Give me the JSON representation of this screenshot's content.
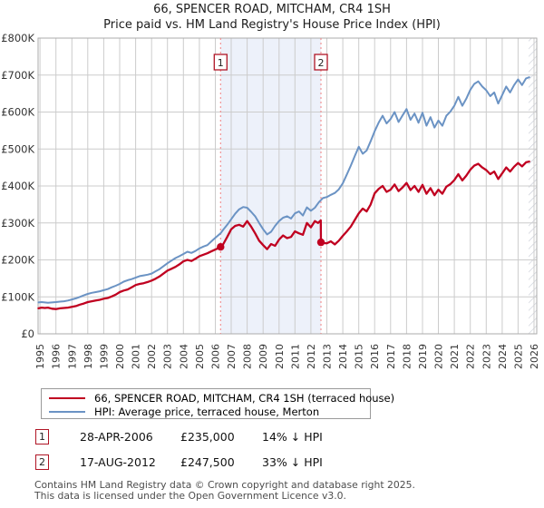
{
  "title": "66, SPENCER ROAD, MITCHAM, CR4 1SH",
  "subtitle": "Price paid vs. HM Land Registry's House Price Index (HPI)",
  "legend": {
    "items": [
      {
        "label": "66, SPENCER ROAD, MITCHAM, CR4 1SH (terraced house)",
        "color": "#c00020"
      },
      {
        "label": "HPI: Average price, terraced house, Merton",
        "color": "#6b93c4"
      }
    ]
  },
  "purchases": [
    {
      "num": "1",
      "date": "28-APR-2006",
      "price": "£235,000",
      "hpi_diff": "14% ↓ HPI"
    },
    {
      "num": "2",
      "date": "17-AUG-2012",
      "price": "£247,500",
      "hpi_diff": "33% ↓ HPI"
    }
  ],
  "footer": {
    "line1": "Contains HM Land Registry data © Crown copyright and database right 2025.",
    "line2": "This data is licensed under the Open Government Licence v3.0."
  },
  "colors": {
    "price_line": "#c00020",
    "hpi_line": "#6b93c4",
    "grid": "#cccccc",
    "plot_border": "#ababab",
    "shade": "#edf1fa",
    "dashed": "#f08080",
    "marker_box_border": "#b01525",
    "marker_text": "#222222",
    "hatch": "#c5c9d4",
    "tick_text": "#333333",
    "dot": "#c00020"
  },
  "chart_data": {
    "type": "line",
    "title": "66, SPENCER ROAD, MITCHAM, CR4 1SH",
    "x_range": [
      1994.88,
      2026.17
    ],
    "y_range": [
      0,
      800
    ],
    "x_ticks": [
      1995,
      1996,
      1997,
      1998,
      1999,
      2000,
      2001,
      2002,
      2003,
      2004,
      2005,
      2006,
      2007,
      2008,
      2009,
      2010,
      2011,
      2012,
      2013,
      2014,
      2015,
      2016,
      2017,
      2018,
      2019,
      2020,
      2021,
      2022,
      2023,
      2024,
      2025,
      2026
    ],
    "y_ticks": [
      [
        0,
        "£0"
      ],
      [
        100,
        "£100K"
      ],
      [
        200,
        "£200K"
      ],
      [
        300,
        "£300K"
      ],
      [
        400,
        "£400K"
      ],
      [
        500,
        "£500K"
      ],
      [
        600,
        "£600K"
      ],
      [
        700,
        "£700K"
      ],
      [
        800,
        "£800K"
      ]
    ],
    "grid": true,
    "legend_position": "bottom",
    "shaded_region": {
      "from": 2006.33,
      "to": 2012.63
    },
    "future_hatch_from": 2025.66,
    "markers": [
      {
        "label": "1",
        "x": 2006.33,
        "y": 235
      },
      {
        "label": "2",
        "x": 2012.63,
        "y": 247.5
      }
    ],
    "series": [
      {
        "name": "HPI: Average price, terraced house, Merton",
        "color": "#6b93c4",
        "width": 2,
        "points": [
          [
            1994.9,
            85
          ],
          [
            1995.1,
            86
          ],
          [
            1995.3,
            85
          ],
          [
            1995.5,
            84
          ],
          [
            1995.75,
            85
          ],
          [
            1996,
            86
          ],
          [
            1996.25,
            87
          ],
          [
            1996.5,
            88
          ],
          [
            1996.75,
            90
          ],
          [
            1997,
            93
          ],
          [
            1997.25,
            96
          ],
          [
            1997.5,
            100
          ],
          [
            1997.75,
            104
          ],
          [
            1998,
            108
          ],
          [
            1998.25,
            111
          ],
          [
            1998.5,
            113
          ],
          [
            1998.75,
            115
          ],
          [
            1999,
            118
          ],
          [
            1999.25,
            121
          ],
          [
            1999.5,
            126
          ],
          [
            1999.75,
            130
          ],
          [
            2000,
            135
          ],
          [
            2000.25,
            141
          ],
          [
            2000.5,
            145
          ],
          [
            2000.75,
            148
          ],
          [
            2001,
            152
          ],
          [
            2001.25,
            156
          ],
          [
            2001.5,
            158
          ],
          [
            2001.75,
            160
          ],
          [
            2002,
            163
          ],
          [
            2002.25,
            169
          ],
          [
            2002.5,
            175
          ],
          [
            2002.75,
            183
          ],
          [
            2003,
            191
          ],
          [
            2003.25,
            198
          ],
          [
            2003.5,
            205
          ],
          [
            2003.75,
            210
          ],
          [
            2004,
            216
          ],
          [
            2004.25,
            222
          ],
          [
            2004.5,
            219
          ],
          [
            2004.75,
            224
          ],
          [
            2005,
            231
          ],
          [
            2005.25,
            236
          ],
          [
            2005.5,
            240
          ],
          [
            2005.75,
            250
          ],
          [
            2006,
            260
          ],
          [
            2006.33,
            272
          ],
          [
            2006.5,
            282
          ],
          [
            2006.75,
            295
          ],
          [
            2007,
            310
          ],
          [
            2007.25,
            325
          ],
          [
            2007.5,
            337
          ],
          [
            2007.75,
            343
          ],
          [
            2008,
            341
          ],
          [
            2008.25,
            330
          ],
          [
            2008.5,
            318
          ],
          [
            2008.75,
            300
          ],
          [
            2009,
            283
          ],
          [
            2009.25,
            269
          ],
          [
            2009.5,
            276
          ],
          [
            2009.75,
            292
          ],
          [
            2010,
            305
          ],
          [
            2010.25,
            314
          ],
          [
            2010.5,
            318
          ],
          [
            2010.75,
            312
          ],
          [
            2011,
            326
          ],
          [
            2011.25,
            331
          ],
          [
            2011.5,
            320
          ],
          [
            2011.75,
            342
          ],
          [
            2012,
            333
          ],
          [
            2012.25,
            341
          ],
          [
            2012.5,
            356
          ],
          [
            2012.75,
            367
          ],
          [
            2013,
            370
          ],
          [
            2013.25,
            376
          ],
          [
            2013.5,
            381
          ],
          [
            2013.75,
            391
          ],
          [
            2014,
            407
          ],
          [
            2014.25,
            431
          ],
          [
            2014.5,
            455
          ],
          [
            2014.75,
            481
          ],
          [
            2015,
            506
          ],
          [
            2015.25,
            487
          ],
          [
            2015.5,
            496
          ],
          [
            2015.75,
            521
          ],
          [
            2016,
            548
          ],
          [
            2016.25,
            571
          ],
          [
            2016.5,
            590
          ],
          [
            2016.75,
            569
          ],
          [
            2017,
            581
          ],
          [
            2017.25,
            600
          ],
          [
            2017.5,
            573
          ],
          [
            2017.75,
            591
          ],
          [
            2018,
            608
          ],
          [
            2018.25,
            579
          ],
          [
            2018.5,
            596
          ],
          [
            2018.75,
            571
          ],
          [
            2019,
            598
          ],
          [
            2019.25,
            563
          ],
          [
            2019.5,
            586
          ],
          [
            2019.75,
            558
          ],
          [
            2020,
            577
          ],
          [
            2020.25,
            563
          ],
          [
            2020.5,
            590
          ],
          [
            2020.75,
            601
          ],
          [
            2021,
            617
          ],
          [
            2021.25,
            641
          ],
          [
            2021.5,
            617
          ],
          [
            2021.75,
            636
          ],
          [
            2022,
            660
          ],
          [
            2022.25,
            676
          ],
          [
            2022.5,
            683
          ],
          [
            2022.75,
            669
          ],
          [
            2023,
            659
          ],
          [
            2023.25,
            643
          ],
          [
            2023.5,
            653
          ],
          [
            2023.75,
            623
          ],
          [
            2024,
            646
          ],
          [
            2024.25,
            669
          ],
          [
            2024.5,
            653
          ],
          [
            2024.75,
            673
          ],
          [
            2025,
            688
          ],
          [
            2025.25,
            673
          ],
          [
            2025.5,
            691
          ],
          [
            2025.7,
            694
          ]
        ]
      },
      {
        "name": "66, SPENCER ROAD, MITCHAM, CR4 1SH (terraced house)",
        "color": "#c00020",
        "width": 2.3,
        "points": [
          [
            1994.9,
            69
          ],
          [
            1995.1,
            71
          ],
          [
            1995.3,
            70
          ],
          [
            1995.5,
            71
          ],
          [
            1995.75,
            68
          ],
          [
            1996,
            67
          ],
          [
            1996.25,
            69
          ],
          [
            1996.5,
            70
          ],
          [
            1996.75,
            71
          ],
          [
            1997,
            73
          ],
          [
            1997.25,
            75
          ],
          [
            1997.5,
            79
          ],
          [
            1997.75,
            82
          ],
          [
            1998,
            86
          ],
          [
            1998.25,
            88
          ],
          [
            1998.5,
            90
          ],
          [
            1998.75,
            92
          ],
          [
            1999,
            95
          ],
          [
            1999.25,
            97
          ],
          [
            1999.5,
            101
          ],
          [
            1999.75,
            106
          ],
          [
            2000,
            113
          ],
          [
            2000.25,
            117
          ],
          [
            2000.5,
            120
          ],
          [
            2000.75,
            126
          ],
          [
            2001,
            132
          ],
          [
            2001.25,
            135
          ],
          [
            2001.5,
            137
          ],
          [
            2001.75,
            140
          ],
          [
            2002,
            144
          ],
          [
            2002.25,
            149
          ],
          [
            2002.5,
            155
          ],
          [
            2002.75,
            163
          ],
          [
            2003,
            171
          ],
          [
            2003.25,
            176
          ],
          [
            2003.5,
            181
          ],
          [
            2003.75,
            188
          ],
          [
            2004,
            196
          ],
          [
            2004.25,
            200
          ],
          [
            2004.5,
            197
          ],
          [
            2004.75,
            203
          ],
          [
            2005,
            210
          ],
          [
            2005.25,
            214
          ],
          [
            2005.5,
            218
          ],
          [
            2005.75,
            223
          ],
          [
            2006,
            228
          ],
          [
            2006.33,
            235
          ],
          [
            2006.5,
            243
          ],
          [
            2006.75,
            262
          ],
          [
            2007,
            283
          ],
          [
            2007.25,
            292
          ],
          [
            2007.5,
            295
          ],
          [
            2007.75,
            290
          ],
          [
            2008,
            305
          ],
          [
            2008.25,
            290
          ],
          [
            2008.5,
            272
          ],
          [
            2008.75,
            252
          ],
          [
            2009,
            240
          ],
          [
            2009.25,
            229
          ],
          [
            2009.5,
            243
          ],
          [
            2009.75,
            238
          ],
          [
            2010,
            255
          ],
          [
            2010.25,
            266
          ],
          [
            2010.5,
            259
          ],
          [
            2010.75,
            262
          ],
          [
            2011,
            277
          ],
          [
            2011.25,
            272
          ],
          [
            2011.5,
            268
          ],
          [
            2011.75,
            300
          ],
          [
            2012,
            288
          ],
          [
            2012.25,
            305
          ],
          [
            2012.45,
            300
          ],
          [
            2012.62,
            307
          ],
          [
            2012.63,
            247.5
          ],
          [
            2012.75,
            246
          ],
          [
            2013,
            245
          ],
          [
            2013.25,
            250
          ],
          [
            2013.5,
            242
          ],
          [
            2013.75,
            252
          ],
          [
            2014,
            265
          ],
          [
            2014.25,
            277
          ],
          [
            2014.5,
            290
          ],
          [
            2014.75,
            308
          ],
          [
            2015,
            326
          ],
          [
            2015.25,
            339
          ],
          [
            2015.5,
            331
          ],
          [
            2015.75,
            350
          ],
          [
            2016,
            380
          ],
          [
            2016.25,
            392
          ],
          [
            2016.5,
            400
          ],
          [
            2016.75,
            384
          ],
          [
            2017,
            390
          ],
          [
            2017.25,
            404
          ],
          [
            2017.5,
            386
          ],
          [
            2017.75,
            396
          ],
          [
            2018,
            408
          ],
          [
            2018.25,
            389
          ],
          [
            2018.5,
            400
          ],
          [
            2018.75,
            384
          ],
          [
            2019,
            403
          ],
          [
            2019.25,
            379
          ],
          [
            2019.5,
            394
          ],
          [
            2019.75,
            375
          ],
          [
            2020,
            390
          ],
          [
            2020.25,
            379
          ],
          [
            2020.5,
            398
          ],
          [
            2020.75,
            405
          ],
          [
            2021,
            416
          ],
          [
            2021.25,
            432
          ],
          [
            2021.5,
            415
          ],
          [
            2021.75,
            428
          ],
          [
            2022,
            444
          ],
          [
            2022.25,
            455
          ],
          [
            2022.5,
            460
          ],
          [
            2022.75,
            450
          ],
          [
            2023,
            443
          ],
          [
            2023.25,
            432
          ],
          [
            2023.5,
            439
          ],
          [
            2023.75,
            419
          ],
          [
            2024,
            434
          ],
          [
            2024.25,
            450
          ],
          [
            2024.5,
            439
          ],
          [
            2024.75,
            452
          ],
          [
            2025,
            462
          ],
          [
            2025.25,
            453
          ],
          [
            2025.5,
            464
          ],
          [
            2025.7,
            466
          ]
        ]
      }
    ]
  }
}
